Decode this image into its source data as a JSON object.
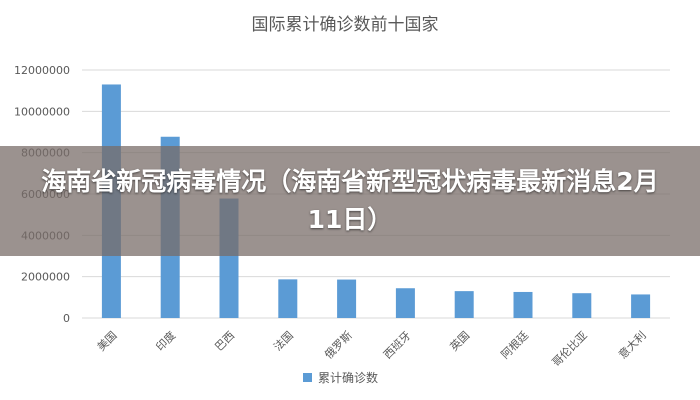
{
  "colors": {
    "bar": "#5B9BD5",
    "grid": "#d9d9d9",
    "axis_text": "#595959",
    "title": "#595959"
  },
  "chart_data": {
    "type": "bar",
    "title": "国际累计确诊数前十国家",
    "categories": [
      "美国",
      "印度",
      "巴西",
      "法国",
      "俄罗斯",
      "西班牙",
      "英国",
      "阿根廷",
      "哥伦比亚",
      "意大利"
    ],
    "series": [
      {
        "name": "累计确诊数",
        "values": [
          11300000,
          8770000,
          5780000,
          1870000,
          1860000,
          1440000,
          1300000,
          1260000,
          1200000,
          1140000
        ]
      }
    ],
    "yticks": [
      "0",
      "2000000",
      "4000000",
      "6000000",
      "8000000",
      "10000000",
      "12000000"
    ],
    "ylim": [
      0,
      12000000
    ],
    "grid": true,
    "legend": "bottom"
  },
  "overlay": {
    "headline": "海南省新冠病毒情况（海南省新型冠状病毒最新消息2月11日）"
  }
}
